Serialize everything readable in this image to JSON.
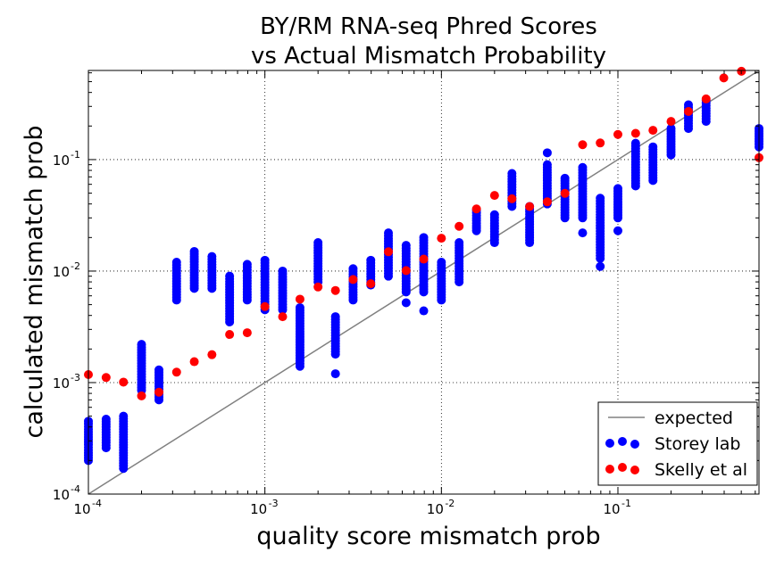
{
  "chart_data": {
    "type": "scatter",
    "title": [
      "BY/RM RNA-seq Phred Scores",
      "vs Actual Mismatch Probability"
    ],
    "xlabel": "quality score mismatch prob",
    "ylabel": "calculated mismatch prob",
    "xscale": "log",
    "yscale": "log",
    "xlim": [
      0.0001,
      0.63
    ],
    "ylim": [
      0.0001,
      0.63
    ],
    "grid": true,
    "legend_position": "lower-right",
    "xticks": [
      {
        "base": "10",
        "exp": "-4"
      },
      {
        "base": "10",
        "exp": "-3"
      },
      {
        "base": "10",
        "exp": "-2"
      },
      {
        "base": "10",
        "exp": "-1"
      }
    ],
    "yticks": [
      {
        "base": "10",
        "exp": "-4"
      },
      {
        "base": "10",
        "exp": "-3"
      },
      {
        "base": "10",
        "exp": "-2"
      },
      {
        "base": "10",
        "exp": "-1"
      }
    ],
    "colors": {
      "expected": "#808080",
      "storey": "#0000ff",
      "skelly": "#ff0000"
    },
    "series": [
      {
        "name": "expected",
        "kind": "line",
        "x": [
          0.0001,
          0.63
        ],
        "y": [
          0.0001,
          0.63
        ]
      },
      {
        "name": "Storey lab",
        "kind": "scatter-columns",
        "columns": [
          {
            "x": 0.0001,
            "ymin": 0.0002,
            "ymax": 0.00045
          },
          {
            "x": 0.000126,
            "ymin": 0.00026,
            "ymax": 0.00047
          },
          {
            "x": 0.000158,
            "ymin": 0.00017,
            "ymax": 0.0005
          },
          {
            "x": 0.0002,
            "ymin": 0.00085,
            "ymax": 0.0022
          },
          {
            "x": 0.000251,
            "ymin": 0.0007,
            "ymax": 0.0013
          },
          {
            "x": 0.000316,
            "ymin": 0.0055,
            "ymax": 0.012
          },
          {
            "x": 0.000398,
            "ymin": 0.007,
            "ymax": 0.015
          },
          {
            "x": 0.000501,
            "ymin": 0.007,
            "ymax": 0.0135
          },
          {
            "x": 0.000631,
            "ymin": 0.0035,
            "ymax": 0.009
          },
          {
            "x": 0.000794,
            "ymin": 0.0055,
            "ymax": 0.0115
          },
          {
            "x": 0.001,
            "ymin": 0.0045,
            "ymax": 0.0125
          },
          {
            "x": 0.00126,
            "ymin": 0.0045,
            "ymax": 0.01
          },
          {
            "x": 0.00158,
            "ymin": 0.0014,
            "ymax": 0.0047
          },
          {
            "x": 0.002,
            "ymin": 0.008,
            "ymax": 0.018
          },
          {
            "x": 0.00251,
            "ymin": 0.0018,
            "ymax": 0.0039
          },
          {
            "x": 0.00316,
            "ymin": 0.0055,
            "ymax": 0.0105
          },
          {
            "x": 0.00398,
            "ymin": 0.0075,
            "ymax": 0.0125
          },
          {
            "x": 0.00501,
            "ymin": 0.009,
            "ymax": 0.022
          },
          {
            "x": 0.00631,
            "ymin": 0.0065,
            "ymax": 0.017
          },
          {
            "x": 0.00794,
            "ymin": 0.0065,
            "ymax": 0.02
          },
          {
            "x": 0.01,
            "ymin": 0.0055,
            "ymax": 0.012
          },
          {
            "x": 0.0126,
            "ymin": 0.008,
            "ymax": 0.018
          },
          {
            "x": 0.0158,
            "ymin": 0.023,
            "ymax": 0.035
          },
          {
            "x": 0.02,
            "ymin": 0.018,
            "ymax": 0.032
          },
          {
            "x": 0.0251,
            "ymin": 0.038,
            "ymax": 0.075
          },
          {
            "x": 0.0316,
            "ymin": 0.018,
            "ymax": 0.038
          },
          {
            "x": 0.0398,
            "ymin": 0.04,
            "ymax": 0.09
          },
          {
            "x": 0.0501,
            "ymin": 0.03,
            "ymax": 0.068
          },
          {
            "x": 0.0631,
            "ymin": 0.03,
            "ymax": 0.085
          },
          {
            "x": 0.0794,
            "ymin": 0.013,
            "ymax": 0.045
          },
          {
            "x": 0.1,
            "ymin": 0.03,
            "ymax": 0.055
          },
          {
            "x": 0.126,
            "ymin": 0.058,
            "ymax": 0.14
          },
          {
            "x": 0.158,
            "ymin": 0.065,
            "ymax": 0.13
          },
          {
            "x": 0.2,
            "ymin": 0.11,
            "ymax": 0.19
          },
          {
            "x": 0.251,
            "ymin": 0.19,
            "ymax": 0.31
          },
          {
            "x": 0.316,
            "ymin": 0.22,
            "ymax": 0.34
          },
          {
            "x": 0.63,
            "ymin": 0.13,
            "ymax": 0.19
          }
        ],
        "outliers": [
          {
            "x": 0.00251,
            "y": 0.0012
          },
          {
            "x": 0.00631,
            "y": 0.0052
          },
          {
            "x": 0.00794,
            "y": 0.0044
          },
          {
            "x": 0.0398,
            "y": 0.115
          },
          {
            "x": 0.0631,
            "y": 0.022
          },
          {
            "x": 0.0794,
            "y": 0.011
          },
          {
            "x": 0.1,
            "y": 0.023
          }
        ]
      },
      {
        "name": "Skelly et al",
        "kind": "scatter",
        "x": [
          0.0001,
          0.000126,
          0.000158,
          0.0002,
          0.000251,
          0.000316,
          0.000398,
          0.000501,
          0.000631,
          0.000794,
          0.001,
          0.00126,
          0.00158,
          0.002,
          0.00251,
          0.00316,
          0.00398,
          0.00501,
          0.00631,
          0.00794,
          0.01,
          0.0126,
          0.0158,
          0.02,
          0.0251,
          0.0316,
          0.0398,
          0.0501,
          0.0631,
          0.0794,
          0.1,
          0.126,
          0.158,
          0.2,
          0.251,
          0.316,
          0.398,
          0.501,
          0.63
        ],
        "y": [
          0.00118,
          0.00111,
          0.00101,
          0.00076,
          0.00082,
          0.00124,
          0.00154,
          0.00178,
          0.0027,
          0.0028,
          0.0048,
          0.0039,
          0.0056,
          0.0072,
          0.0067,
          0.0084,
          0.0077,
          0.0149,
          0.0101,
          0.0128,
          0.0197,
          0.0252,
          0.0361,
          0.0477,
          0.0445,
          0.0379,
          0.0418,
          0.0498,
          0.136,
          0.141,
          0.168,
          0.172,
          0.183,
          0.22,
          0.27,
          0.35,
          0.54,
          0.62,
          0.104
        ]
      }
    ]
  }
}
